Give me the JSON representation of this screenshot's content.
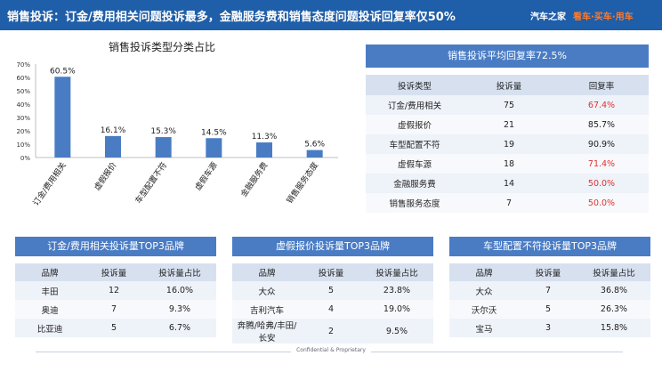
{
  "header": {
    "title": "销售投诉：订金/费用相关问题投诉最多，金融服务费和销售态度问题投诉回复率仅50%",
    "logo_name": "汽车之家",
    "logo_tag": "看车·买车·用车"
  },
  "chart_data": {
    "type": "bar",
    "title": "销售投诉类型分类占比",
    "categories": [
      "订金/费用相关",
      "虚假报价",
      "车型配置不符",
      "虚假车源",
      "金融服务费",
      "销售服务态度"
    ],
    "values": [
      60.5,
      16.1,
      15.3,
      14.5,
      11.3,
      5.6
    ],
    "value_labels": [
      "60.5%",
      "16.1%",
      "15.3%",
      "14.5%",
      "11.3%",
      "5.6%"
    ],
    "ylim": [
      0,
      70
    ],
    "yticks": [
      "0%",
      "10%",
      "20%",
      "30%",
      "40%",
      "50%",
      "60%",
      "70%"
    ],
    "grid": false,
    "bar_color": "#4a7cc4"
  },
  "summary": {
    "title": "销售投诉平均回复率72.5%",
    "headers": [
      "投诉类型",
      "投诉量",
      "回复率"
    ],
    "rows": [
      [
        "订金/费用相关",
        "75",
        "67.4%"
      ],
      [
        "虚假报价",
        "21",
        "85.7%"
      ],
      [
        "车型配置不符",
        "19",
        "90.9%"
      ],
      [
        "虚假车源",
        "18",
        "71.4%"
      ],
      [
        "金融服务费",
        "14",
        "50.0%"
      ],
      [
        "销售服务态度",
        "7",
        "50.0%"
      ]
    ],
    "highlight_color": "#e03030"
  },
  "top3": [
    {
      "title": "订金/费用相关投诉量TOP3品牌",
      "headers": [
        "品牌",
        "投诉量",
        "投诉量占比"
      ],
      "rows": [
        [
          "丰田",
          "12",
          "16.0%"
        ],
        [
          "奥迪",
          "7",
          "9.3%"
        ],
        [
          "比亚迪",
          "5",
          "6.7%"
        ]
      ]
    },
    {
      "title": "虚假报价投诉量TOP3品牌",
      "headers": [
        "品牌",
        "投诉量",
        "投诉量占比"
      ],
      "rows": [
        [
          "大众",
          "5",
          "23.8%"
        ],
        [
          "吉利汽车",
          "4",
          "19.0%"
        ],
        [
          "奔腾/哈弗/丰田/长安",
          "2",
          "9.5%"
        ]
      ]
    },
    {
      "title": "车型配置不符投诉量TOP3品牌",
      "headers": [
        "品牌",
        "投诉量",
        "投诉量占比"
      ],
      "rows": [
        [
          "大众",
          "7",
          "36.8%"
        ],
        [
          "沃尔沃",
          "5",
          "26.3%"
        ],
        [
          "宝马",
          "3",
          "15.8%"
        ]
      ]
    }
  ],
  "footer": {
    "text": "Confidential & Proprietary"
  }
}
